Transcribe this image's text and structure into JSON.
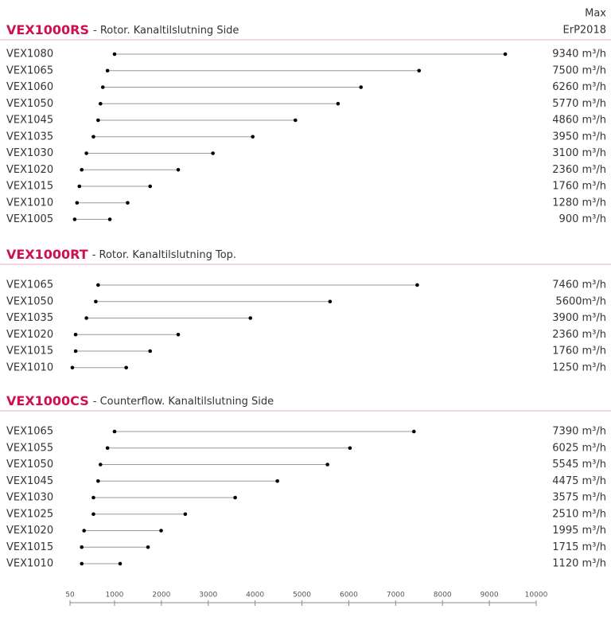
{
  "chart_data": {
    "type": "dumbbell",
    "column_header": [
      "Max",
      "ErP2018"
    ],
    "xlim": [
      50,
      10000
    ],
    "xticks": [
      50,
      1000,
      2000,
      3000,
      4000,
      5000,
      6000,
      7000,
      8000,
      9000,
      10000
    ],
    "color": "#000000",
    "line_color": "#999999",
    "accent_color": "#d0104c",
    "groups": [
      {
        "title": "VEX1000RS",
        "subtitle": "- Rotor. Kanaltilslutning Side",
        "categories": [
          "VEX1080",
          "VEX1065",
          "VEX1060",
          "VEX1050",
          "VEX1045",
          "VEX1035",
          "VEX1030",
          "VEX1020",
          "VEX1015",
          "VEX1010",
          "VEX1005"
        ],
        "low": [
          1000,
          850,
          750,
          700,
          650,
          550,
          400,
          300,
          250,
          200,
          150
        ],
        "high": [
          9340,
          7500,
          6260,
          5770,
          4860,
          3950,
          3100,
          2360,
          1760,
          1280,
          900
        ],
        "value_labels": [
          "9340 m³/h",
          "7500 m³/h",
          "6260 m³/h",
          "5770 m³/h",
          "4860 m³/h",
          "3950 m³/h",
          "3100 m³/h",
          "2360 m³/h",
          "1760 m³/h",
          "1280 m³/h",
          "900 m³/h"
        ]
      },
      {
        "title": "VEX1000RT",
        "subtitle": "- Rotor. Kanaltilslutning Top.",
        "categories": [
          "VEX1065",
          "VEX1050",
          "VEX1035",
          "VEX1020",
          "VEX1015",
          "VEX1010"
        ],
        "low": [
          650,
          600,
          400,
          170,
          170,
          100
        ],
        "high": [
          7460,
          5600,
          3900,
          2360,
          1760,
          1250
        ],
        "value_labels": [
          "7460 m³/h",
          "5600m³/h",
          "3900 m³/h",
          "2360 m³/h",
          "1760 m³/h",
          "1250 m³/h"
        ]
      },
      {
        "title": "VEX1000CS",
        "subtitle": "- Counterflow. Kanaltilslutning Side",
        "categories": [
          "VEX1065",
          "VEX1055",
          "VEX1050",
          "VEX1045",
          "VEX1030",
          "VEX1025",
          "VEX1020",
          "VEX1015",
          "VEX1010"
        ],
        "low": [
          1000,
          850,
          700,
          650,
          550,
          550,
          350,
          300,
          300
        ],
        "high": [
          7390,
          6025,
          5545,
          4475,
          3575,
          2510,
          1995,
          1715,
          1120
        ],
        "value_labels": [
          "7390 m³/h",
          "6025 m³/h",
          "5545 m³/h",
          "4475 m³/h",
          "3575 m³/h",
          "2510 m³/h",
          "1995 m³/h",
          "1715 m³/h",
          "1120 m³/h"
        ]
      }
    ]
  }
}
